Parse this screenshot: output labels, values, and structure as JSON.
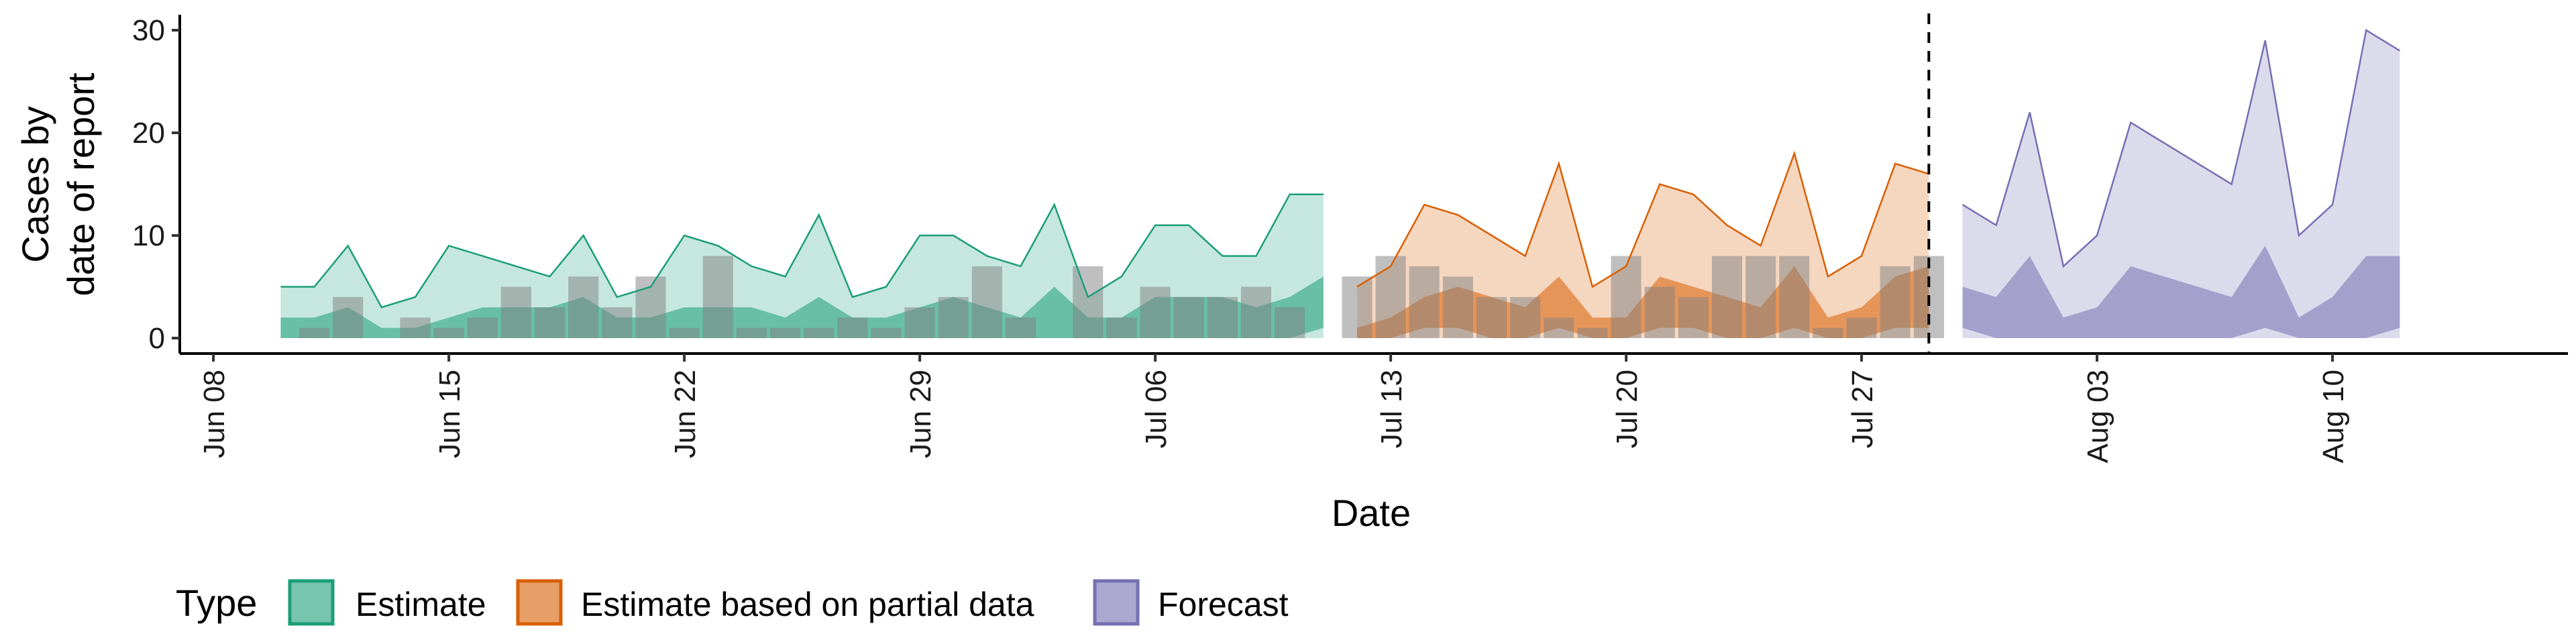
{
  "chart_data": {
    "type": "area",
    "xlabel": "Date",
    "ylabel_line1": "Cases by",
    "ylabel_line2": "date of report",
    "ylim": [
      -1.5,
      31.5
    ],
    "xlim": [
      "2020-06-07",
      "2020-08-17"
    ],
    "y_ticks": [
      0,
      10,
      20,
      30
    ],
    "x_ticks": [
      {
        "date": "2020-06-08",
        "label": "Jun 08"
      },
      {
        "date": "2020-06-15",
        "label": "Jun 15"
      },
      {
        "date": "2020-06-22",
        "label": "Jun 22"
      },
      {
        "date": "2020-06-29",
        "label": "Jun 29"
      },
      {
        "date": "2020-07-06",
        "label": "Jul 06"
      },
      {
        "date": "2020-07-13",
        "label": "Jul 13"
      },
      {
        "date": "2020-07-20",
        "label": "Jul 20"
      },
      {
        "date": "2020-07-27",
        "label": "Jul 27"
      },
      {
        "date": "2020-08-03",
        "label": "Aug 03"
      },
      {
        "date": "2020-08-10",
        "label": "Aug 10"
      }
    ],
    "grid": false,
    "vline_date": "2020-07-29",
    "legend": {
      "title": "Type",
      "position": "bottom",
      "entries": [
        {
          "label": "Estimate",
          "fill": "#1B9E77"
        },
        {
          "label": "Estimate based on partial data",
          "fill": "#D95F02"
        },
        {
          "label": "Forecast",
          "fill": "#7570B3"
        }
      ]
    },
    "observed_cases": {
      "color": "#808080",
      "points": [
        [
          "2020-06-11",
          1
        ],
        [
          "2020-06-12",
          4
        ],
        [
          "2020-06-14",
          2
        ],
        [
          "2020-06-15",
          1
        ],
        [
          "2020-06-16",
          2
        ],
        [
          "2020-06-17",
          5
        ],
        [
          "2020-06-18",
          3
        ],
        [
          "2020-06-19",
          6
        ],
        [
          "2020-06-20",
          3
        ],
        [
          "2020-06-21",
          6
        ],
        [
          "2020-06-22",
          1
        ],
        [
          "2020-06-23",
          8
        ],
        [
          "2020-06-24",
          1
        ],
        [
          "2020-06-25",
          1
        ],
        [
          "2020-06-26",
          1
        ],
        [
          "2020-06-27",
          2
        ],
        [
          "2020-06-28",
          1
        ],
        [
          "2020-06-29",
          3
        ],
        [
          "2020-06-30",
          4
        ],
        [
          "2020-07-01",
          7
        ],
        [
          "2020-07-02",
          2
        ],
        [
          "2020-07-04",
          7
        ],
        [
          "2020-07-05",
          2
        ],
        [
          "2020-07-06",
          5
        ],
        [
          "2020-07-07",
          4
        ],
        [
          "2020-07-08",
          4
        ],
        [
          "2020-07-09",
          5
        ],
        [
          "2020-07-10",
          3
        ],
        [
          "2020-07-12",
          6
        ],
        [
          "2020-07-13",
          8
        ],
        [
          "2020-07-14",
          7
        ],
        [
          "2020-07-15",
          6
        ],
        [
          "2020-07-16",
          4
        ],
        [
          "2020-07-17",
          4
        ],
        [
          "2020-07-18",
          2
        ],
        [
          "2020-07-19",
          1
        ],
        [
          "2020-07-20",
          8
        ],
        [
          "2020-07-21",
          5
        ],
        [
          "2020-07-22",
          4
        ],
        [
          "2020-07-23",
          8
        ],
        [
          "2020-07-24",
          8
        ],
        [
          "2020-07-25",
          8
        ],
        [
          "2020-07-26",
          1
        ],
        [
          "2020-07-27",
          2
        ],
        [
          "2020-07-28",
          7
        ],
        [
          "2020-07-29",
          8
        ]
      ]
    },
    "series": [
      {
        "name": "Estimate",
        "color": "#1B9E77",
        "dates": [
          "2020-06-10",
          "2020-06-11",
          "2020-06-12",
          "2020-06-13",
          "2020-06-14",
          "2020-06-15",
          "2020-06-16",
          "2020-06-17",
          "2020-06-18",
          "2020-06-19",
          "2020-06-20",
          "2020-06-21",
          "2020-06-22",
          "2020-06-23",
          "2020-06-24",
          "2020-06-25",
          "2020-06-26",
          "2020-06-27",
          "2020-06-28",
          "2020-06-29",
          "2020-06-30",
          "2020-07-01",
          "2020-07-02",
          "2020-07-03",
          "2020-07-04",
          "2020-07-05",
          "2020-07-06",
          "2020-07-07",
          "2020-07-08",
          "2020-07-09",
          "2020-07-10",
          "2020-07-11"
        ],
        "upper90": [
          5,
          5,
          9,
          3,
          4,
          9,
          8,
          7,
          6,
          10,
          4,
          5,
          10,
          9,
          7,
          6,
          12,
          4,
          5,
          10,
          10,
          8,
          7,
          13,
          4,
          6,
          11,
          11,
          8,
          8,
          14,
          14
        ],
        "upper50": [
          2,
          2,
          3,
          1,
          1,
          2,
          3,
          3,
          3,
          4,
          2,
          2,
          3,
          3,
          3,
          2,
          4,
          2,
          2,
          3,
          4,
          3,
          2,
          5,
          2,
          2,
          4,
          4,
          4,
          3,
          4,
          6
        ],
        "lower50": [
          0,
          0,
          0,
          0,
          0,
          0,
          0,
          0,
          0,
          0,
          0,
          0,
          0,
          0,
          0,
          0,
          0,
          0,
          0,
          0,
          0,
          0,
          0,
          0,
          0,
          0,
          0,
          0,
          0,
          0,
          0,
          1
        ]
      },
      {
        "name": "Estimate based on partial data",
        "color": "#D95F02",
        "dates": [
          "2020-07-12",
          "2020-07-13",
          "2020-07-14",
          "2020-07-15",
          "2020-07-16",
          "2020-07-17",
          "2020-07-18",
          "2020-07-19",
          "2020-07-20",
          "2020-07-21",
          "2020-07-22",
          "2020-07-23",
          "2020-07-24",
          "2020-07-25",
          "2020-07-26",
          "2020-07-27",
          "2020-07-28",
          "2020-07-29"
        ],
        "upper90": [
          5,
          7,
          13,
          12,
          10,
          8,
          17,
          5,
          7,
          15,
          14,
          11,
          9,
          18,
          6,
          8,
          17,
          16
        ],
        "upper50": [
          1,
          2,
          4,
          5,
          4,
          3,
          6,
          2,
          2,
          6,
          5,
          4,
          3,
          7,
          2,
          3,
          6,
          7
        ],
        "lower50": [
          0,
          0,
          1,
          1,
          0,
          0,
          1,
          0,
          0,
          1,
          1,
          0,
          0,
          1,
          0,
          0,
          1,
          1
        ]
      },
      {
        "name": "Forecast",
        "color": "#7570B3",
        "dates": [
          "2020-07-30",
          "2020-07-31",
          "2020-08-01",
          "2020-08-02",
          "2020-08-03",
          "2020-08-04",
          "2020-08-05",
          "2020-08-06",
          "2020-08-07",
          "2020-08-08",
          "2020-08-09",
          "2020-08-10",
          "2020-08-11",
          "2020-08-12"
        ],
        "upper90": [
          13,
          11,
          22,
          7,
          10,
          21,
          19,
          17,
          15,
          29,
          10,
          13,
          30,
          28
        ],
        "upper50": [
          5,
          4,
          8,
          2,
          3,
          7,
          6,
          5,
          4,
          9,
          2,
          4,
          8,
          8
        ],
        "lower50": [
          1,
          0,
          0,
          0,
          0,
          0,
          0,
          0,
          0,
          1,
          0,
          0,
          0,
          1
        ]
      }
    ]
  }
}
